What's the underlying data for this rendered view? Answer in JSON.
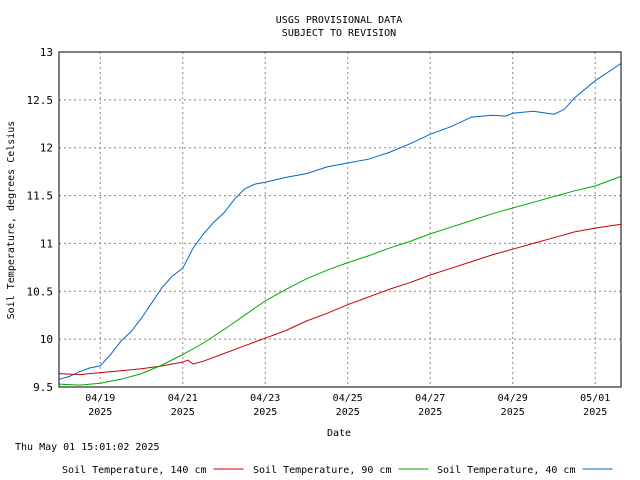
{
  "chart_data": {
    "type": "line",
    "title": "USGS PROVISIONAL DATA",
    "subtitle": "SUBJECT TO REVISION",
    "xlabel": "Date",
    "ylabel": "Soil Temperature, degrees Celsius",
    "timestamp": "Thu May 01 15:01:02 2025",
    "ylim": [
      9.5,
      13
    ],
    "xlim": [
      "2025-04-18T00:00",
      "2025-05-01T15:00"
    ],
    "grid": true,
    "legend_position": "bottom",
    "yticks": [
      "9.5",
      "10",
      "10.5",
      "11",
      "11.5",
      "12",
      "12.5",
      "13"
    ],
    "xticks": [
      {
        "x": "2025-04-19",
        "label": "04/19",
        "year": "2025"
      },
      {
        "x": "2025-04-21",
        "label": "04/21",
        "year": "2025"
      },
      {
        "x": "2025-04-23",
        "label": "04/23",
        "year": "2025"
      },
      {
        "x": "2025-04-25",
        "label": "04/25",
        "year": "2025"
      },
      {
        "x": "2025-04-27",
        "label": "04/27",
        "year": "2025"
      },
      {
        "x": "2025-04-29",
        "label": "04/29",
        "year": "2025"
      },
      {
        "x": "2025-05-01",
        "label": "05/01",
        "year": "2025"
      }
    ],
    "series": [
      {
        "name": "Soil Temperature, 140 cm",
        "color": "#cc0000",
        "points": [
          [
            "2025-04-18T00:00",
            9.64
          ],
          [
            "2025-04-18T12:00",
            9.63
          ],
          [
            "2025-04-19T00:00",
            9.65
          ],
          [
            "2025-04-19T12:00",
            9.67
          ],
          [
            "2025-04-20T00:00",
            9.69
          ],
          [
            "2025-04-20T12:00",
            9.72
          ],
          [
            "2025-04-21T00:00",
            9.76
          ],
          [
            "2025-04-21T03:00",
            9.78
          ],
          [
            "2025-04-21T06:00",
            9.74
          ],
          [
            "2025-04-21T12:00",
            9.77
          ],
          [
            "2025-04-22T00:00",
            9.85
          ],
          [
            "2025-04-22T12:00",
            9.93
          ],
          [
            "2025-04-23T00:00",
            10.01
          ],
          [
            "2025-04-23T12:00",
            10.09
          ],
          [
            "2025-04-24T00:00",
            10.19
          ],
          [
            "2025-04-24T12:00",
            10.27
          ],
          [
            "2025-04-25T00:00",
            10.36
          ],
          [
            "2025-04-25T12:00",
            10.44
          ],
          [
            "2025-04-26T00:00",
            10.52
          ],
          [
            "2025-04-26T12:00",
            10.59
          ],
          [
            "2025-04-27T00:00",
            10.67
          ],
          [
            "2025-04-27T12:00",
            10.74
          ],
          [
            "2025-04-28T00:00",
            10.81
          ],
          [
            "2025-04-28T12:00",
            10.88
          ],
          [
            "2025-04-29T00:00",
            10.94
          ],
          [
            "2025-04-29T12:00",
            11.0
          ],
          [
            "2025-04-30T00:00",
            11.06
          ],
          [
            "2025-04-30T12:00",
            11.12
          ],
          [
            "2025-05-01T00:00",
            11.16
          ],
          [
            "2025-05-01T15:00",
            11.2
          ]
        ]
      },
      {
        "name": "Soil Temperature, 90 cm",
        "color": "#00aa00",
        "points": [
          [
            "2025-04-18T00:00",
            9.53
          ],
          [
            "2025-04-18T12:00",
            9.52
          ],
          [
            "2025-04-19T00:00",
            9.54
          ],
          [
            "2025-04-19T12:00",
            9.58
          ],
          [
            "2025-04-20T00:00",
            9.64
          ],
          [
            "2025-04-20T12:00",
            9.73
          ],
          [
            "2025-04-21T00:00",
            9.84
          ],
          [
            "2025-04-21T12:00",
            9.96
          ],
          [
            "2025-04-22T00:00",
            10.1
          ],
          [
            "2025-04-22T12:00",
            10.25
          ],
          [
            "2025-04-23T00:00",
            10.4
          ],
          [
            "2025-04-23T12:00",
            10.52
          ],
          [
            "2025-04-24T00:00",
            10.63
          ],
          [
            "2025-04-24T12:00",
            10.72
          ],
          [
            "2025-04-25T00:00",
            10.8
          ],
          [
            "2025-04-25T12:00",
            10.87
          ],
          [
            "2025-04-26T00:00",
            10.95
          ],
          [
            "2025-04-26T12:00",
            11.02
          ],
          [
            "2025-04-27T00:00",
            11.1
          ],
          [
            "2025-04-27T12:00",
            11.17
          ],
          [
            "2025-04-28T00:00",
            11.24
          ],
          [
            "2025-04-28T12:00",
            11.31
          ],
          [
            "2025-04-29T00:00",
            11.37
          ],
          [
            "2025-04-29T12:00",
            11.43
          ],
          [
            "2025-04-30T00:00",
            11.49
          ],
          [
            "2025-04-30T12:00",
            11.55
          ],
          [
            "2025-05-01T00:00",
            11.6
          ],
          [
            "2025-05-01T15:00",
            11.7
          ]
        ]
      },
      {
        "name": "Soil Temperature, 40 cm",
        "color": "#0066cc",
        "points": [
          [
            "2025-04-18T00:00",
            9.58
          ],
          [
            "2025-04-18T06:00",
            9.61
          ],
          [
            "2025-04-18T12:00",
            9.66
          ],
          [
            "2025-04-18T18:00",
            9.7
          ],
          [
            "2025-04-19T00:00",
            9.72
          ],
          [
            "2025-04-19T06:00",
            9.84
          ],
          [
            "2025-04-19T12:00",
            9.98
          ],
          [
            "2025-04-19T18:00",
            10.08
          ],
          [
            "2025-04-20T00:00",
            10.22
          ],
          [
            "2025-04-20T06:00",
            10.38
          ],
          [
            "2025-04-20T12:00",
            10.54
          ],
          [
            "2025-04-20T18:00",
            10.66
          ],
          [
            "2025-04-21T00:00",
            10.74
          ],
          [
            "2025-04-21T06:00",
            10.95
          ],
          [
            "2025-04-21T12:00",
            11.1
          ],
          [
            "2025-04-21T18:00",
            11.22
          ],
          [
            "2025-04-22T00:00",
            11.32
          ],
          [
            "2025-04-22T06:00",
            11.46
          ],
          [
            "2025-04-22T12:00",
            11.57
          ],
          [
            "2025-04-22T18:00",
            11.62
          ],
          [
            "2025-04-23T00:00",
            11.64
          ],
          [
            "2025-04-23T12:00",
            11.69
          ],
          [
            "2025-04-24T00:00",
            11.73
          ],
          [
            "2025-04-24T12:00",
            11.8
          ],
          [
            "2025-04-25T00:00",
            11.84
          ],
          [
            "2025-04-25T12:00",
            11.88
          ],
          [
            "2025-04-26T00:00",
            11.95
          ],
          [
            "2025-04-26T12:00",
            12.04
          ],
          [
            "2025-04-27T00:00",
            12.14
          ],
          [
            "2025-04-27T12:00",
            12.22
          ],
          [
            "2025-04-28T00:00",
            12.32
          ],
          [
            "2025-04-28T12:00",
            12.34
          ],
          [
            "2025-04-28T20:00",
            12.33
          ],
          [
            "2025-04-29T00:00",
            12.36
          ],
          [
            "2025-04-29T12:00",
            12.38
          ],
          [
            "2025-04-30T00:00",
            12.35
          ],
          [
            "2025-04-30T06:00",
            12.4
          ],
          [
            "2025-04-30T12:00",
            12.52
          ],
          [
            "2025-05-01T00:00",
            12.7
          ],
          [
            "2025-05-01T15:00",
            12.88
          ]
        ]
      }
    ]
  }
}
